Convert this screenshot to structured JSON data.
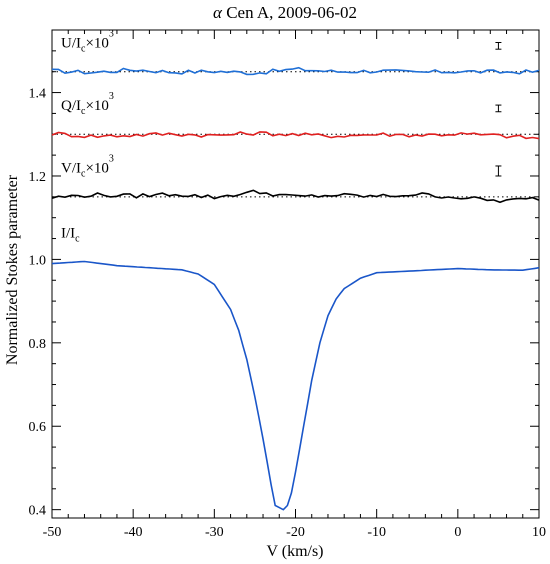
{
  "chart_data": {
    "type": "line",
    "title": {
      "prefix": "α",
      "rest": " Cen A, 2009-06-02"
    },
    "xlabel": "V (km/s)",
    "ylabel": "Normalized Stokes parameter",
    "xlim": [
      -50,
      10
    ],
    "ylim": [
      0.38,
      1.55
    ],
    "xticks": [
      -50,
      -40,
      -30,
      -20,
      -10,
      0,
      10
    ],
    "yticks": [
      0.4,
      0.6,
      0.8,
      1.0,
      1.2,
      1.4
    ],
    "ytick_labels": [
      "0.4",
      "0.6",
      "0.8",
      "1.0",
      "1.2",
      "1.4"
    ],
    "grid": false,
    "series": [
      {
        "name": "U/Ic×10^3",
        "label": {
          "main": "U/I",
          "sub": "c",
          "mid": "×10",
          "sup": "3"
        },
        "color": "#1f6fd6",
        "baseline": 1.45,
        "error_bar": {
          "x": 5,
          "half_height": 0.008
        },
        "x": [
          -50,
          -45,
          -40,
          -35,
          -30,
          -25,
          -20,
          -15,
          -10,
          -5,
          0,
          5,
          10
        ],
        "y": [
          1.452,
          1.448,
          1.455,
          1.449,
          1.451,
          1.447,
          1.456,
          1.45,
          1.452,
          1.448,
          1.451,
          1.449,
          1.45
        ]
      },
      {
        "name": "Q/Ic×10^3",
        "label": {
          "main": "Q/I",
          "sub": "c",
          "mid": "×10",
          "sup": "3"
        },
        "color": "#e02020",
        "baseline": 1.3,
        "error_bar": {
          "x": 5,
          "half_height": 0.008
        },
        "x": [
          -50,
          -45,
          -40,
          -35,
          -30,
          -25,
          -20,
          -15,
          -10,
          -5,
          0,
          5,
          10
        ],
        "y": [
          1.302,
          1.295,
          1.298,
          1.301,
          1.297,
          1.303,
          1.299,
          1.296,
          1.3,
          1.298,
          1.301,
          1.297,
          1.29
        ]
      },
      {
        "name": "V/Ic×10^3",
        "label": {
          "main": "V/I",
          "sub": "c",
          "mid": "×10",
          "sup": "3"
        },
        "color": "#000000",
        "baseline": 1.15,
        "error_bar": {
          "x": 5,
          "half_height": 0.012
        },
        "x": [
          -50,
          -45,
          -40,
          -35,
          -30,
          -25,
          -20,
          -15,
          -10,
          -5,
          0,
          5,
          10
        ],
        "y": [
          1.148,
          1.155,
          1.152,
          1.157,
          1.149,
          1.162,
          1.15,
          1.154,
          1.151,
          1.156,
          1.149,
          1.14,
          1.146
        ]
      },
      {
        "name": "I/Ic",
        "label": {
          "main": "I/I",
          "sub": "c",
          "mid": "",
          "sup": ""
        },
        "color": "#1a56c9",
        "x": [
          -50,
          -46,
          -42,
          -38,
          -34,
          -32,
          -30,
          -28,
          -27,
          -26,
          -25,
          -24,
          -23,
          -22.5,
          -22,
          -21.5,
          -21,
          -20.5,
          -20,
          -19,
          -18,
          -17,
          -16,
          -15,
          -14,
          -12,
          -10,
          -6,
          -2,
          0,
          4,
          8,
          10
        ],
        "y": [
          0.99,
          0.995,
          0.985,
          0.98,
          0.975,
          0.965,
          0.94,
          0.88,
          0.83,
          0.76,
          0.67,
          0.57,
          0.46,
          0.41,
          0.405,
          0.4,
          0.41,
          0.44,
          0.49,
          0.6,
          0.71,
          0.8,
          0.865,
          0.905,
          0.93,
          0.955,
          0.968,
          0.972,
          0.976,
          0.978,
          0.975,
          0.974,
          0.98
        ]
      }
    ]
  }
}
